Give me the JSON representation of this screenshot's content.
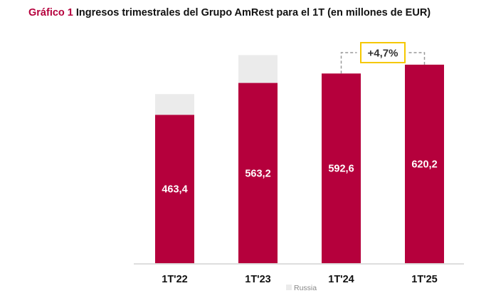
{
  "title": {
    "prefix": "Gráfico 1",
    "text": "Ingresos trimestrales del Grupo AmRest para el 1T (en millones de EUR)"
  },
  "colors": {
    "bar": "#b5003c",
    "russia": "#ebebeb",
    "growth_box": "#f5c800",
    "text": "#111111"
  },
  "chart_data": {
    "type": "bar",
    "stacked": true,
    "categories": [
      "1T'22",
      "1T'23",
      "1T'24",
      "1T'25"
    ],
    "series": [
      {
        "values": [
          463.4,
          563.2,
          592.6,
          620.2
        ],
        "labels": [
          "463,4",
          "563,2",
          "592,6",
          "620,2"
        ]
      },
      {
        "name": "Russia",
        "values": [
          65,
          87,
          0,
          0
        ]
      }
    ],
    "annotation": {
      "text": "+4,7%",
      "from": "1T'24",
      "to": "1T'25"
    },
    "legend": {
      "position": "bottom",
      "entries": [
        "Russia"
      ]
    },
    "ylim": [
      0,
      700
    ],
    "grid": false
  }
}
